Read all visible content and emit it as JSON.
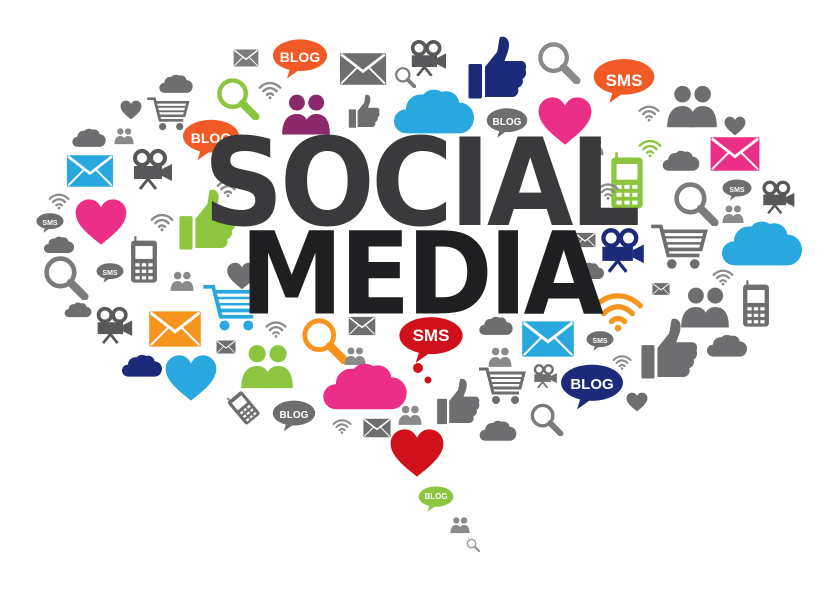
{
  "headline": {
    "line1": "SOCIAL",
    "line2": "MEDIA"
  },
  "badges": {
    "blog": "BLOG",
    "sms": "SMS"
  },
  "icons": [
    "envelope-icon",
    "heart-icon",
    "cloud-icon",
    "thumbs-up-icon",
    "magnifier-icon",
    "people-icon",
    "movie-camera-icon",
    "mobile-phone-icon",
    "shopping-cart-icon",
    "wifi-icon",
    "blog-bubble-icon",
    "sms-bubble-icon"
  ],
  "colors": {
    "pink": "#ec2f86",
    "blue": "#29a8e0",
    "green": "#8cc63f",
    "orange": "#f7941d",
    "red": "#d0111b",
    "navy": "#1d2a7a",
    "purple": "#8b2a6b",
    "gray": "#6e6e70",
    "headline": "#2a2a2c"
  }
}
